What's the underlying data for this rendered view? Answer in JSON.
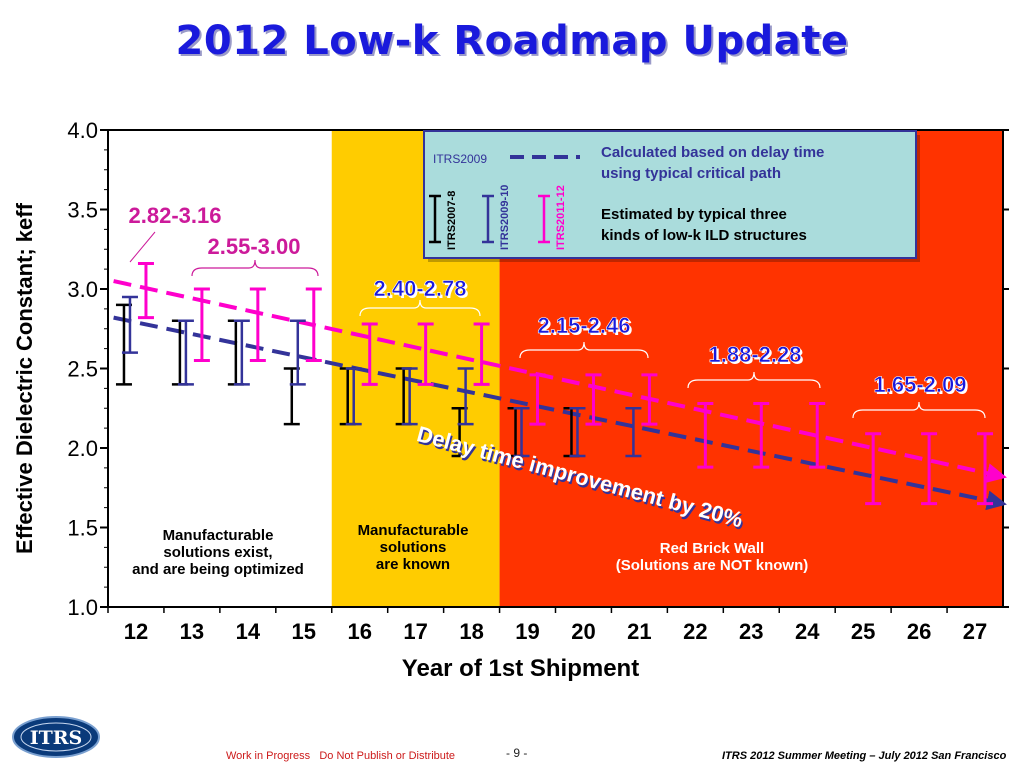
{
  "slide": {
    "title": "2012 Low-k Roadmap Update",
    "footer_left": "Work in Progress   Do Not Publish or Distribute",
    "footer_page": "- 9 -",
    "footer_right": "ITRS 2012 Summer Meeting – July 2012 San Francisco",
    "logo_text": "ITRS"
  },
  "chart_data": {
    "type": "scatter",
    "title": "",
    "xlabel": "Year of 1st Shipment",
    "ylabel": "Effective Dielectric Constant; keff",
    "ylim": [
      1.0,
      4.0
    ],
    "y_ticks": [
      "1.0",
      "1.5",
      "2.0",
      "2.5",
      "3.0",
      "3.5",
      "4.0"
    ],
    "x_ticks": [
      "12",
      "13",
      "14",
      "15",
      "16",
      "17",
      "18",
      "19",
      "20",
      "21",
      "22",
      "23",
      "24",
      "25",
      "26",
      "27"
    ],
    "regions": [
      {
        "name": "manufacturable-optimized",
        "from": "12",
        "to": "15",
        "color": "#ffffff",
        "label": [
          "Manufacturable",
          "solutions exist,",
          "and are being optimized"
        ]
      },
      {
        "name": "manufacturable-known",
        "from": "16",
        "to": "18",
        "color": "#ffcc00",
        "label": [
          "Manufacturable",
          "solutions",
          "are known"
        ]
      },
      {
        "name": "red-brick-wall",
        "from": "19",
        "to": "27",
        "color": "#ff3300",
        "label": [
          "Red Brick Wall",
          "(Solutions are NOT known)"
        ]
      }
    ],
    "series": [
      {
        "name": "ITRS2007-8",
        "color": "#000000",
        "points": [
          {
            "x": 12,
            "low": 2.4,
            "high": 2.9
          },
          {
            "x": 13,
            "low": 2.4,
            "high": 2.8
          },
          {
            "x": 14,
            "low": 2.4,
            "high": 2.8
          },
          {
            "x": 15,
            "low": 2.15,
            "high": 2.5
          },
          {
            "x": 16,
            "low": 2.15,
            "high": 2.5
          },
          {
            "x": 17,
            "low": 2.15,
            "high": 2.5
          },
          {
            "x": 18,
            "low": 1.95,
            "high": 2.25
          },
          {
            "x": 19,
            "low": 1.95,
            "high": 2.25
          },
          {
            "x": 20,
            "low": 1.95,
            "high": 2.25
          }
        ]
      },
      {
        "name": "ITRS2009-10",
        "color": "#333399",
        "points": [
          {
            "x": 12,
            "low": 2.6,
            "high": 2.95
          },
          {
            "x": 13,
            "low": 2.4,
            "high": 2.8
          },
          {
            "x": 14,
            "low": 2.4,
            "high": 2.8
          },
          {
            "x": 15,
            "low": 2.4,
            "high": 2.8
          },
          {
            "x": 16,
            "low": 2.15,
            "high": 2.5
          },
          {
            "x": 17,
            "low": 2.15,
            "high": 2.5
          },
          {
            "x": 18,
            "low": 2.15,
            "high": 2.5
          },
          {
            "x": 19,
            "low": 1.95,
            "high": 2.25
          },
          {
            "x": 20,
            "low": 1.95,
            "high": 2.25
          },
          {
            "x": 21,
            "low": 1.95,
            "high": 2.25
          }
        ]
      },
      {
        "name": "ITRS2011-12",
        "color": "#ff00cc",
        "points": [
          {
            "x": 12,
            "low": 2.82,
            "high": 3.16
          },
          {
            "x": 13,
            "low": 2.55,
            "high": 3.0
          },
          {
            "x": 14,
            "low": 2.55,
            "high": 3.0
          },
          {
            "x": 15,
            "low": 2.55,
            "high": 3.0
          },
          {
            "x": 16,
            "low": 2.4,
            "high": 2.78
          },
          {
            "x": 17,
            "low": 2.4,
            "high": 2.78
          },
          {
            "x": 18,
            "low": 2.4,
            "high": 2.78
          },
          {
            "x": 19,
            "low": 2.15,
            "high": 2.46
          },
          {
            "x": 20,
            "low": 2.15,
            "high": 2.46
          },
          {
            "x": 21,
            "low": 2.15,
            "high": 2.46
          },
          {
            "x": 22,
            "low": 1.88,
            "high": 2.28
          },
          {
            "x": 23,
            "low": 1.88,
            "high": 2.28
          },
          {
            "x": 24,
            "low": 1.88,
            "high": 2.28
          },
          {
            "x": 25,
            "low": 1.65,
            "high": 2.09
          },
          {
            "x": 26,
            "low": 1.65,
            "high": 2.09
          },
          {
            "x": 27,
            "low": 1.65,
            "high": 2.09
          }
        ]
      }
    ],
    "trend_lines": [
      {
        "name": "ITRS2011-12 trend",
        "color": "#ff00cc",
        "from": {
          "x": 11.6,
          "y": 3.05
        },
        "to": {
          "x": 27.5,
          "y": 1.82
        }
      },
      {
        "name": "ITRS2009 trend",
        "color": "#333399",
        "from": {
          "x": 11.6,
          "y": 2.82
        },
        "to": {
          "x": 27.5,
          "y": 1.65
        }
      }
    ],
    "range_labels": [
      {
        "text": "2.82-3.16",
        "color": "#cc1a9a",
        "style": "plain"
      },
      {
        "text": "2.55-3.00",
        "color": "#cc1a9a",
        "style": "plain"
      },
      {
        "text": "2.40-2.78",
        "color": "#1a1adc",
        "style": "shadow"
      },
      {
        "text": "2.15-2.46",
        "color": "#1a1adc",
        "style": "shadow"
      },
      {
        "text": "1.88-2.28",
        "color": "#1a1adc",
        "style": "shadow"
      },
      {
        "text": "1.65-2.09",
        "color": "#1a1adc",
        "style": "shadow"
      }
    ],
    "annotation": "Delay time improvement by 20%",
    "legend": {
      "placement": "top-right",
      "dashed_label": "ITRS2009",
      "bar_labels": [
        "ITRS2007-8",
        "ITRS2009-10",
        "ITRS2011-12"
      ],
      "bar_colors": [
        "#000000",
        "#333399",
        "#ff00cc"
      ],
      "note1": [
        "Calculated based on delay time",
        "using typical critical path"
      ],
      "note2": [
        "Estimated by typical three",
        "kinds of low-k ILD structures"
      ]
    }
  }
}
